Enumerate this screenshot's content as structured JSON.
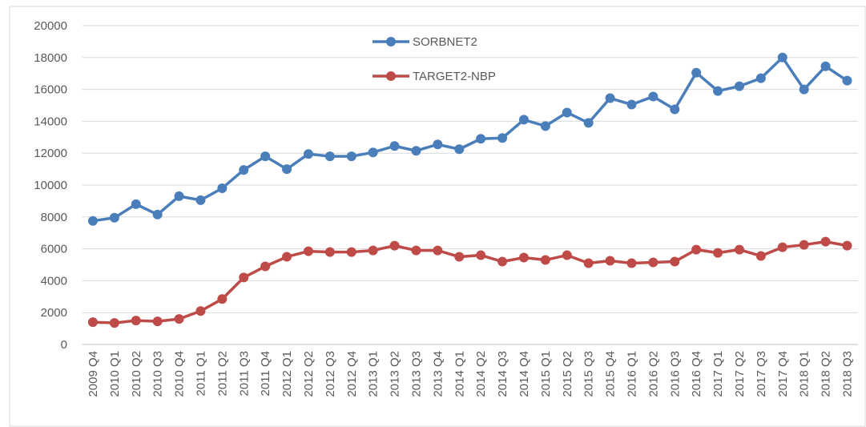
{
  "chart_data": {
    "type": "line",
    "categories": [
      "2009 Q4",
      "2010 Q1",
      "2010 Q2",
      "2010 Q3",
      "2010 Q4",
      "2011 Q1",
      "2011 Q2",
      "2011 Q3",
      "2011 Q4",
      "2012 Q1",
      "2012 Q2",
      "2012 Q3",
      "2012 Q4",
      "2013 Q1",
      "2013 Q2",
      "2013 Q3",
      "2013 Q4",
      "2014 Q1",
      "2014 Q2",
      "2014 Q3",
      "2014 Q4",
      "2015 Q1",
      "2015 Q2",
      "2015 Q3",
      "2015 Q4",
      "2016 Q1",
      "2016 Q2",
      "2016 Q3",
      "2016 Q4",
      "2017 Q1",
      "2017 Q2",
      "2017 Q3",
      "2017 Q4",
      "2018 Q1",
      "2018 Q2",
      "2018 Q3"
    ],
    "series": [
      {
        "name": "SORBNET2",
        "color": "#4a7ebb",
        "values": [
          7750,
          7950,
          8800,
          8150,
          9300,
          9050,
          9800,
          10950,
          11800,
          11000,
          11950,
          11800,
          11800,
          12050,
          12450,
          12150,
          12550,
          12250,
          12900,
          12950,
          14100,
          13700,
          14550,
          13900,
          15450,
          15050,
          15550,
          14750,
          17050,
          15900,
          16200,
          16700,
          18000,
          16000,
          17450,
          16550
        ]
      },
      {
        "name": "TARGET2-NBP",
        "color": "#be4b48",
        "values": [
          1400,
          1350,
          1500,
          1450,
          1600,
          2100,
          2850,
          4200,
          4900,
          5500,
          5850,
          5800,
          5800,
          5900,
          6200,
          5900,
          5900,
          5500,
          5600,
          5200,
          5450,
          5300,
          5600,
          5100,
          5250,
          5100,
          5150,
          5200,
          5950,
          5750,
          5950,
          5550,
          6100,
          6250,
          6450,
          6200
        ]
      }
    ],
    "ylim": [
      0,
      20000
    ],
    "yticks": [
      0,
      2000,
      4000,
      6000,
      8000,
      10000,
      12000,
      14000,
      16000,
      18000,
      20000
    ],
    "grid": true,
    "legend": "top"
  }
}
